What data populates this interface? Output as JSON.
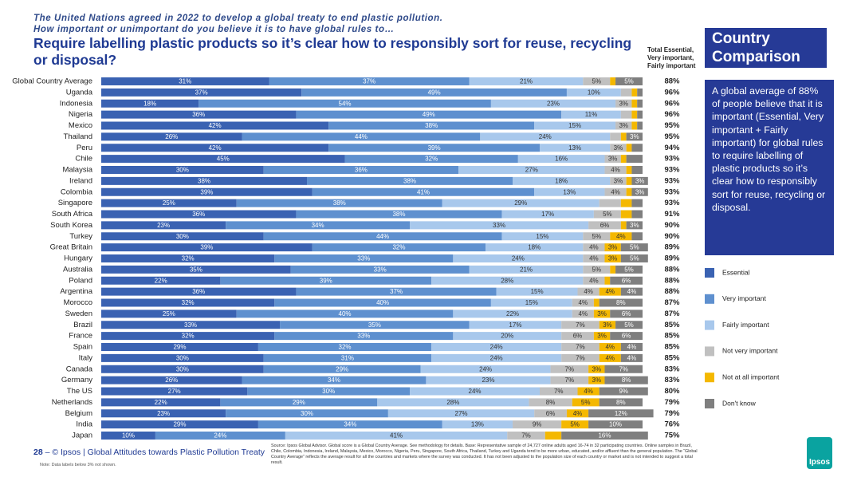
{
  "header": {
    "intro": [
      "The United Nations agreed in 2022 to develop a global treaty to end plastic pollution.",
      "How important or unimportant do you believe it is to have global rules to…"
    ],
    "title": "Require labelling plastic products so it’s clear how to responsibly sort for reuse, recycling or disposal?"
  },
  "sidebar": {
    "title": "Country Comparison",
    "text": "A global average of 88% of people believe that it is important (Essential, Very important + Fairly important) for global rules to require labelling of plastic products so it’s clear how to responsibly sort for reuse, recycling or disposal."
  },
  "footer": {
    "page": "28",
    "brand": "– © Ipsos | Global Attitudes towards Plastic Pollution Treaty",
    "note": "Note: Data labels below 3% not shown.",
    "source": "Source: Ipsos Global Advisor. Global score is a Global Country Average. See methodology for details. Base: Representative sample of 24,727 online adults aged 16-74 in 32 participating countries. Online samples in Brazil, Chile, Colombia, Indonesia, Ireland, Malaysia, Mexico, Morocco, Nigeria, Peru, Singapore, South Africa, Thailand, Turkey and Uganda tend to be more urban, educated, and/or affluent than the general population. The “Global Country Average” reflects the average result for all the countries and markets where the survey was conducted. It has not been adjusted to the population size of each country or market and is not intended to suggest a total result.",
    "logo": "Ipsos"
  },
  "chart_data": {
    "type": "stacked-bar-horizontal",
    "xlim": [
      0,
      100
    ],
    "categories": [
      "Global Country Average",
      "Uganda",
      "Indonesia",
      "Nigeria",
      "Mexico",
      "Thailand",
      "Peru",
      "Chile",
      "Malaysia",
      "Ireland",
      "Colombia",
      "Singapore",
      "South Africa",
      "South Korea",
      "Turkey",
      "Great Britain",
      "Hungary",
      "Australia",
      "Poland",
      "Argentina",
      "Morocco",
      "Sweden",
      "Brazil",
      "France",
      "Spain",
      "Italy",
      "Canada",
      "Germany",
      "The US",
      "Netherlands",
      "Belgium",
      "India",
      "Japan"
    ],
    "series": [
      {
        "name": "Essential",
        "color": "#3a62b2",
        "values": [
          31,
          37,
          18,
          36,
          42,
          26,
          42,
          45,
          30,
          38,
          39,
          25,
          36,
          23,
          30,
          39,
          32,
          35,
          22,
          36,
          32,
          25,
          33,
          32,
          29,
          30,
          30,
          26,
          27,
          22,
          23,
          29,
          10
        ],
        "value_labels": [
          "31%",
          "37%",
          "18%",
          "36%",
          "42%",
          "26%",
          "42%",
          "45%",
          "30%",
          "38%",
          "39%",
          "25%",
          "36%",
          "23%",
          "30%",
          "39%",
          "32%",
          "35%",
          "22%",
          "36%",
          "32%",
          "25%",
          "33%",
          "32%",
          "29%",
          "30%",
          "30%",
          "26%",
          "27%",
          "22%",
          "23%",
          "29%",
          "10%"
        ]
      },
      {
        "name": "Very important",
        "color": "#5e90cf",
        "values": [
          37,
          49,
          54,
          49,
          38,
          44,
          39,
          32,
          36,
          38,
          41,
          38,
          38,
          34,
          44,
          32,
          33,
          33,
          39,
          37,
          40,
          40,
          35,
          33,
          32,
          31,
          29,
          34,
          30,
          29,
          30,
          34,
          24
        ],
        "value_labels": [
          "37%",
          "49%",
          "54%",
          "49%",
          "38%",
          "44%",
          "39%",
          "32%",
          "36%",
          "38%",
          "41%",
          "38%",
          "38%",
          "34%",
          "44%",
          "32%",
          "33%",
          "33%",
          "39%",
          "37%",
          "40%",
          "40%",
          "35%",
          "33%",
          "32%",
          "31%",
          "29%",
          "34%",
          "30%",
          "29%",
          "30%",
          "34%",
          "24%"
        ]
      },
      {
        "name": "Fairly important",
        "color": "#a8c8ec",
        "values": [
          21,
          10,
          23,
          11,
          15,
          24,
          13,
          16,
          27,
          18,
          13,
          29,
          17,
          33,
          15,
          18,
          24,
          21,
          28,
          15,
          15,
          22,
          17,
          20,
          24,
          24,
          24,
          23,
          24,
          28,
          27,
          13,
          41
        ],
        "value_labels": [
          "21%",
          "10%",
          "23%",
          "11%",
          "15%",
          "24%",
          "13%",
          "16%",
          "27%",
          "18%",
          "13%",
          "29%",
          "17%",
          "33%",
          "15%",
          "18%",
          "24%",
          "21%",
          "28%",
          "15%",
          "15%",
          "22%",
          "17%",
          "20%",
          "24%",
          "24%",
          "24%",
          "23%",
          "24%",
          "28%",
          "27%",
          "13%",
          "41%"
        ]
      },
      {
        "name": "Not very important",
        "color": "#c0c0c0",
        "values": [
          5,
          2,
          3,
          2,
          3,
          2,
          3,
          3,
          4,
          3,
          4,
          4,
          5,
          6,
          5,
          4,
          4,
          5,
          4,
          4,
          4,
          4,
          7,
          6,
          7,
          7,
          7,
          7,
          7,
          8,
          6,
          9,
          7
        ],
        "value_labels": [
          "5%",
          null,
          "3%",
          null,
          "3%",
          null,
          "3%",
          "3%",
          "4%",
          "3%",
          "4%",
          null,
          "5%",
          "6%",
          "5%",
          "4%",
          "4%",
          "5%",
          "4%",
          "4%",
          "4%",
          "4%",
          "7%",
          "6%",
          "7%",
          "7%",
          "7%",
          "7%",
          "7%",
          "8%",
          "6%",
          "9%",
          "7%"
        ]
      },
      {
        "name": "Not at all important",
        "color": "#f4b800",
        "values": [
          1,
          1,
          1,
          1,
          1,
          1,
          1,
          1,
          1,
          1,
          1,
          2,
          2,
          1,
          4,
          3,
          3,
          1,
          1,
          4,
          1,
          3,
          3,
          3,
          4,
          4,
          3,
          3,
          4,
          5,
          4,
          5,
          3
        ],
        "value_labels": [
          null,
          null,
          null,
          null,
          null,
          null,
          null,
          null,
          null,
          null,
          null,
          null,
          null,
          null,
          "4%",
          "3%",
          "3%",
          null,
          null,
          "4%",
          null,
          "3%",
          "3%",
          "3%",
          "4%",
          "4%",
          "3%",
          "3%",
          "4%",
          "5%",
          "4%",
          "5%",
          null
        ]
      },
      {
        "name": "Don't know",
        "color": "#7f7f7f",
        "values": [
          5,
          1,
          1,
          1,
          1,
          3,
          2,
          3,
          2,
          3,
          3,
          2,
          2,
          3,
          2,
          5,
          5,
          5,
          6,
          4,
          8,
          6,
          5,
          6,
          4,
          4,
          7,
          8,
          9,
          8,
          12,
          10,
          16
        ],
        "value_labels": [
          "5%",
          null,
          null,
          null,
          null,
          "3%",
          null,
          null,
          null,
          "3%",
          "3%",
          null,
          null,
          "3%",
          null,
          "5%",
          "5%",
          "5%",
          "6%",
          "4%",
          "8%",
          "6%",
          "5%",
          "6%",
          "4%",
          "4%",
          "7%",
          "8%",
          "9%",
          "8%",
          "12%",
          "10%",
          "16%"
        ]
      }
    ],
    "totals": {
      "label": "Total Essential, Very important, Fairly important",
      "values": [
        88,
        96,
        96,
        96,
        95,
        95,
        94,
        93,
        93,
        93,
        93,
        93,
        91,
        90,
        90,
        89,
        89,
        88,
        88,
        88,
        87,
        87,
        85,
        85,
        85,
        85,
        83,
        83,
        80,
        79,
        79,
        76,
        75
      ],
      "value_labels": [
        "88%",
        "96%",
        "96%",
        "96%",
        "95%",
        "95%",
        "94%",
        "93%",
        "93%",
        "93%",
        "93%",
        "93%",
        "91%",
        "90%",
        "90%",
        "89%",
        "89%",
        "88%",
        "88%",
        "88%",
        "87%",
        "87%",
        "85%",
        "85%",
        "85%",
        "85%",
        "83%",
        "83%",
        "80%",
        "79%",
        "79%",
        "76%",
        "75%"
      ]
    }
  }
}
